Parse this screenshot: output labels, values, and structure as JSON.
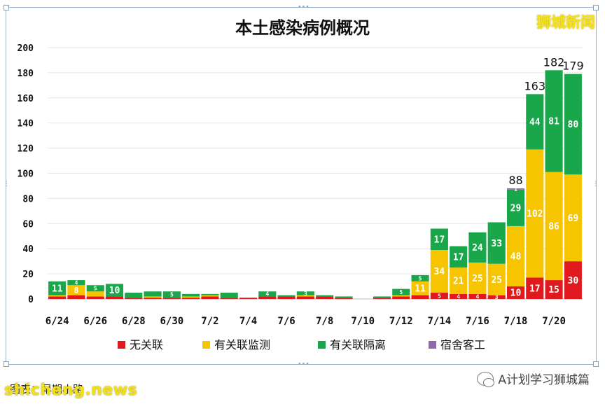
{
  "watermarks": {
    "top_right": "狮城新闻",
    "bottom_left": "shicheng.news",
    "bottom_right": "A计划学习狮城篇",
    "caption": "图表：早期小路"
  },
  "chart_data": {
    "type": "bar",
    "stacked": true,
    "title": "本土感染病例概况",
    "xlabel": "",
    "ylabel": "",
    "ylim": [
      0,
      200
    ],
    "yticks": [
      0,
      20,
      40,
      60,
      80,
      100,
      120,
      140,
      160,
      180,
      200
    ],
    "grid": true,
    "legend_position": "bottom",
    "categories": [
      "6/24",
      "6/25",
      "6/26",
      "6/27",
      "6/28",
      "6/29",
      "6/30",
      "7/1",
      "7/2",
      "7/3",
      "7/4",
      "7/5",
      "7/6",
      "7/7",
      "7/8",
      "7/9",
      "7/10",
      "7/11",
      "7/12",
      "7/13",
      "7/14",
      "7/15",
      "7/16",
      "7/17",
      "7/18",
      "7/19",
      "7/20",
      "7/21"
    ],
    "tick_labels": [
      "6/24",
      "6/26",
      "6/28",
      "6/30",
      "7/2",
      "7/4",
      "7/6",
      "7/8",
      "7/10",
      "7/12",
      "7/14",
      "7/16",
      "7/18",
      "7/20"
    ],
    "series": [
      {
        "name": "无关联",
        "color": "#e0191e",
        "values": [
          2,
          3,
          2,
          2,
          1,
          1,
          1,
          1,
          2,
          1,
          1,
          2,
          2,
          2,
          2,
          1,
          0,
          1,
          2,
          3,
          5,
          4,
          4,
          3,
          10,
          17,
          15,
          30
        ],
        "labels": [
          null,
          null,
          null,
          null,
          null,
          null,
          null,
          null,
          null,
          null,
          null,
          null,
          null,
          null,
          null,
          null,
          null,
          null,
          null,
          null,
          "5",
          "4",
          "4",
          "3",
          "10",
          "17",
          "15",
          "30"
        ]
      },
      {
        "name": "有关联监测",
        "color": "#f7c400",
        "values": [
          1,
          8,
          4,
          0,
          0,
          1,
          0,
          1,
          1,
          0,
          0,
          0,
          0,
          1,
          0,
          0,
          0,
          0,
          1,
          11,
          34,
          21,
          25,
          25,
          48,
          102,
          86,
          69
        ],
        "labels": [
          null,
          "8",
          null,
          null,
          null,
          null,
          null,
          null,
          null,
          null,
          null,
          null,
          null,
          null,
          null,
          null,
          null,
          null,
          null,
          "11",
          "34",
          "21",
          "25",
          "25",
          "48",
          "102",
          "86",
          "69"
        ]
      },
      {
        "name": "有关联隔离",
        "color": "#1aa64a",
        "values": [
          11,
          4,
          5,
          10,
          4,
          4,
          5,
          2,
          1,
          4,
          0,
          4,
          1,
          3,
          1,
          1,
          0,
          1,
          5,
          5,
          17,
          17,
          24,
          33,
          29,
          44,
          81,
          80
        ],
        "labels": [
          "11",
          "4",
          "5",
          "10",
          null,
          null,
          "5",
          null,
          null,
          null,
          null,
          "4",
          null,
          "3",
          null,
          null,
          null,
          null,
          "5",
          "5",
          "17",
          "17",
          "24",
          "33",
          "29",
          "44",
          "81",
          "80"
        ]
      },
      {
        "name": "宿舍客工",
        "color": "#8e6aa8",
        "values": [
          0,
          0,
          0,
          0,
          0,
          0,
          0,
          0,
          0,
          0,
          0,
          0,
          0,
          0,
          0,
          0,
          0,
          0,
          0,
          0,
          0,
          0,
          0,
          0,
          1,
          0,
          0,
          0
        ],
        "labels": [
          null,
          null,
          null,
          null,
          null,
          null,
          null,
          null,
          null,
          null,
          null,
          null,
          null,
          null,
          null,
          null,
          null,
          null,
          null,
          null,
          null,
          null,
          null,
          null,
          "1",
          null,
          null,
          null
        ]
      }
    ],
    "totals_labels": [
      {
        "category": "7/18",
        "text": "88"
      },
      {
        "category": "7/19",
        "text": "163"
      },
      {
        "category": "7/20",
        "text": "182"
      },
      {
        "category": "7/21",
        "text": "179"
      }
    ]
  }
}
